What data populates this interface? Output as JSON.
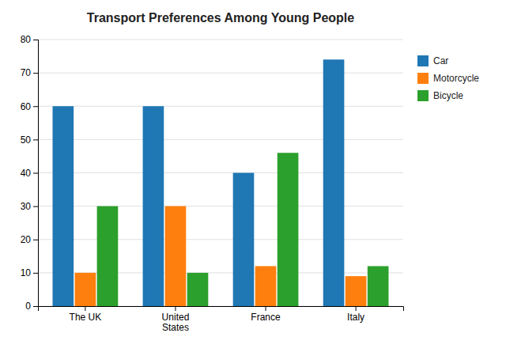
{
  "chart_data": {
    "type": "bar",
    "title": "Transport Preferences Among Young People",
    "categories": [
      "The UK",
      "United\nStates",
      "France",
      "Italy"
    ],
    "series": [
      {
        "name": "Car",
        "values": [
          60,
          60,
          40,
          74
        ]
      },
      {
        "name": "Motorcycle",
        "values": [
          10,
          30,
          12,
          9
        ]
      },
      {
        "name": "Bicycle",
        "values": [
          30,
          10,
          46,
          12
        ]
      }
    ],
    "ylim": [
      0,
      80
    ],
    "yticks": [
      0,
      10,
      20,
      30,
      40,
      50,
      60,
      70,
      80
    ],
    "grid": true,
    "legend": "right"
  }
}
